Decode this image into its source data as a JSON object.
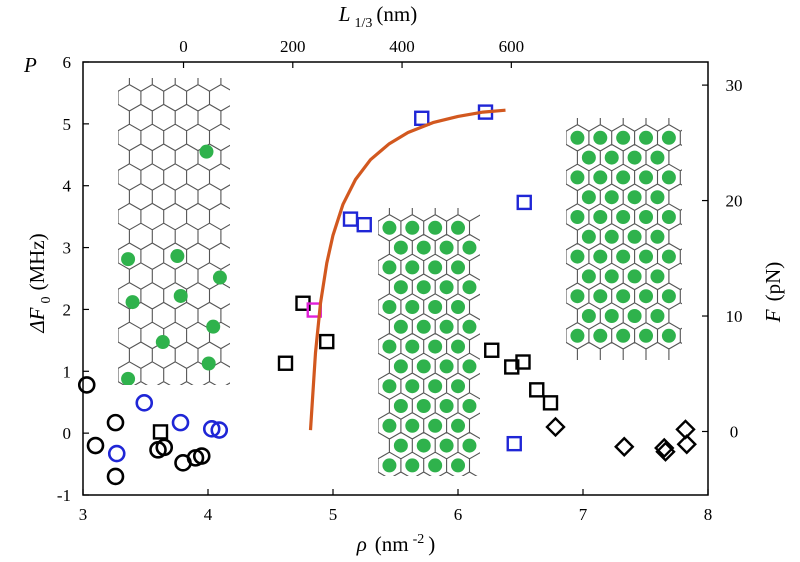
{
  "chart_data": {
    "type": "scatter",
    "axes": {
      "x_bottom": {
        "label_sym": "ρ",
        "label_unit": "(nm",
        "label_exp": "-2",
        "label_close": ")",
        "range": [
          3,
          8
        ],
        "ticks": [
          "3",
          "4",
          "5",
          "6",
          "7",
          "8"
        ]
      },
      "y_left": {
        "label_sym": "ΔF",
        "label_sub": "0",
        "label_unit": "(MHz)",
        "range": [
          -1,
          6
        ],
        "ticks": [
          "-1",
          "0",
          "1",
          "2",
          "3",
          "4",
          "5",
          "6"
        ]
      },
      "y_right": {
        "label_sym": "F",
        "label_unit": "(pN)",
        "range": [
          -5.5,
          32
        ],
        "ticks": [
          "0",
          "10",
          "20",
          "30"
        ]
      },
      "x_top": {
        "label_sym": "L",
        "label_sub": "1/3",
        "label_unit": "(nm)",
        "range": [
          -184,
          960
        ],
        "ticks": [
          "0",
          "200",
          "400",
          "600"
        ]
      },
      "corner_label": "P"
    },
    "colors": {
      "black": "#000000",
      "blue": "#1f26d6",
      "magenta": "#e01fd8",
      "orange": "#d2581f",
      "green": "#2fb24c",
      "lattice": "#555555"
    },
    "series": [
      {
        "marker": "circle",
        "color": "black",
        "x": [
          3.03,
          3.1,
          3.26,
          3.26,
          3.6,
          3.65,
          3.8,
          3.9,
          3.95
        ],
        "y": [
          0.78,
          -0.2,
          0.17,
          -0.7,
          -0.27,
          -0.23,
          -0.48,
          -0.4,
          -0.37
        ]
      },
      {
        "marker": "circle",
        "color": "blue",
        "x": [
          3.27,
          3.49,
          3.78,
          4.03,
          4.09
        ],
        "y": [
          -0.33,
          0.49,
          0.17,
          0.07,
          0.05
        ]
      },
      {
        "marker": "square",
        "color": "black",
        "x": [
          3.62,
          4.62,
          4.76,
          4.95,
          6.27,
          6.43,
          6.52,
          6.63,
          6.74
        ],
        "y": [
          0.02,
          1.13,
          2.1,
          1.48,
          1.34,
          1.07,
          1.15,
          0.7,
          0.49
        ]
      },
      {
        "marker": "square",
        "color": "blue",
        "x": [
          5.14,
          5.25,
          5.71,
          6.22,
          6.45,
          6.53
        ],
        "y": [
          3.46,
          3.37,
          5.09,
          5.19,
          -0.17,
          3.73
        ]
      },
      {
        "marker": "square",
        "color": "magenta",
        "x": [
          4.85
        ],
        "y": [
          1.99
        ]
      },
      {
        "marker": "diamond",
        "color": "black",
        "x": [
          6.78,
          7.33,
          7.65,
          7.66,
          7.82,
          7.83
        ],
        "y": [
          0.1,
          -0.22,
          -0.24,
          -0.3,
          0.06,
          -0.18
        ]
      },
      {
        "marker": "line",
        "color": "orange",
        "x": [
          4.82,
          4.86,
          4.9,
          4.95,
          5.0,
          5.08,
          5.18,
          5.3,
          5.45,
          5.6,
          5.8,
          6.0,
          6.2,
          6.38
        ],
        "y": [
          0.05,
          1.3,
          2.1,
          2.75,
          3.2,
          3.7,
          4.1,
          4.42,
          4.68,
          4.86,
          5.02,
          5.12,
          5.19,
          5.22
        ]
      }
    ],
    "insets": [
      {
        "name": "inset-sparse",
        "fill": "sparse"
      },
      {
        "name": "inset-middle",
        "fill": "dense"
      },
      {
        "name": "inset-right",
        "fill": "dense"
      }
    ]
  }
}
